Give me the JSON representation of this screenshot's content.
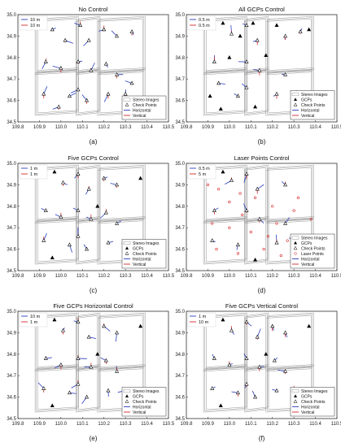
{
  "figure": {
    "x_ticks": [
      "109.8",
      "109.9",
      "110.0",
      "110.1",
      "110.2",
      "110.3",
      "110.4",
      "110.5"
    ],
    "y_ticks": [
      "34.5",
      "34.6",
      "34.7",
      "34.8",
      "34.9",
      "35.0"
    ],
    "legend_labels": {
      "stereo": "Stereo Images",
      "gcp": "GCPs",
      "check": "Check Points",
      "laser": "Laser Points",
      "horizontal": "Horizontal",
      "vertical": "Vertical"
    },
    "colors": {
      "horizontal": "#2b3dbd",
      "vertical": "#d62828",
      "frame": "#9a9a9a",
      "marker": "#000000"
    }
  },
  "chart_data": [
    {
      "type": "scatter",
      "title": "No Control",
      "caption": "(a)",
      "xlim": [
        109.8,
        110.5
      ],
      "ylim": [
        34.5,
        35.0
      ],
      "scale_legend": [
        "10 m",
        "10 m"
      ],
      "legend_items": [
        "stereo",
        "check",
        "horizontal",
        "vertical"
      ],
      "gcps": [],
      "laser_points": [],
      "check_points": [
        [
          109.96,
          34.93
        ],
        [
          110.02,
          34.88
        ],
        [
          110.09,
          34.95
        ],
        [
          110.13,
          34.88
        ],
        [
          110.2,
          34.93
        ],
        [
          110.26,
          34.9
        ],
        [
          110.33,
          34.92
        ],
        [
          109.93,
          34.78
        ],
        [
          110.0,
          34.75
        ],
        [
          110.08,
          34.78
        ],
        [
          110.14,
          34.74
        ],
        [
          110.21,
          34.77
        ],
        [
          110.26,
          34.72
        ],
        [
          109.92,
          34.63
        ],
        [
          109.99,
          34.57
        ],
        [
          110.04,
          34.62
        ],
        [
          110.08,
          34.65
        ],
        [
          110.12,
          34.6
        ],
        [
          110.22,
          34.63
        ],
        [
          110.3,
          34.63
        ],
        [
          110.33,
          34.68
        ]
      ]
    },
    {
      "type": "scatter",
      "title": "All GCPs Control",
      "caption": "(b)",
      "xlim": [
        109.8,
        110.5
      ],
      "ylim": [
        34.5,
        35.0
      ],
      "scale_legend": [
        "0.5 m",
        "0.5 m"
      ],
      "legend_items": [
        "stereo",
        "gcp",
        "check",
        "horizontal",
        "vertical"
      ],
      "gcps": [
        [
          109.97,
          34.96
        ],
        [
          110.05,
          34.9
        ],
        [
          110.11,
          34.96
        ],
        [
          110.22,
          34.95
        ],
        [
          110.37,
          34.93
        ],
        [
          110.0,
          34.8
        ],
        [
          110.17,
          34.81
        ],
        [
          109.91,
          34.62
        ],
        [
          109.96,
          34.56
        ],
        [
          110.12,
          34.57
        ],
        [
          110.33,
          34.56
        ]
      ],
      "laser_points": [],
      "check_points": [
        [
          110.01,
          34.91
        ],
        [
          110.08,
          34.95
        ],
        [
          110.13,
          34.88
        ],
        [
          110.26,
          34.9
        ],
        [
          110.33,
          34.92
        ],
        [
          109.93,
          34.78
        ],
        [
          110.08,
          34.78
        ],
        [
          110.14,
          34.74
        ],
        [
          110.26,
          34.72
        ],
        [
          109.95,
          34.68
        ],
        [
          110.04,
          34.62
        ],
        [
          110.08,
          34.66
        ],
        [
          110.22,
          34.63
        ],
        [
          110.3,
          34.63
        ]
      ]
    },
    {
      "type": "scatter",
      "title": "Five GCPs Control",
      "caption": "(c)",
      "xlim": [
        109.8,
        110.5
      ],
      "ylim": [
        34.5,
        35.0
      ],
      "scale_legend": [
        "1 m",
        "1 m"
      ],
      "legend_items": [
        "stereo",
        "gcp",
        "check",
        "horizontal",
        "vertical"
      ],
      "gcps": [
        [
          109.97,
          34.96
        ],
        [
          110.37,
          34.93
        ],
        [
          110.17,
          34.8
        ],
        [
          109.96,
          34.56
        ],
        [
          110.33,
          34.56
        ]
      ],
      "laser_points": [],
      "check_points": [
        [
          110.01,
          34.91
        ],
        [
          110.08,
          34.95
        ],
        [
          110.13,
          34.88
        ],
        [
          110.2,
          34.93
        ],
        [
          110.26,
          34.9
        ],
        [
          109.93,
          34.78
        ],
        [
          110.0,
          34.75
        ],
        [
          110.08,
          34.78
        ],
        [
          110.14,
          34.74
        ],
        [
          110.21,
          34.77
        ],
        [
          110.26,
          34.72
        ],
        [
          109.92,
          34.64
        ],
        [
          110.04,
          34.62
        ],
        [
          110.08,
          34.66
        ],
        [
          110.12,
          34.6
        ],
        [
          110.22,
          34.63
        ],
        [
          110.3,
          34.63
        ]
      ]
    },
    {
      "type": "scatter",
      "title": "Laser Points Control",
      "caption": "(d)",
      "xlim": [
        109.8,
        110.5
      ],
      "ylim": [
        34.5,
        35.0
      ],
      "scale_legend": [
        "0.5 m",
        "5 m"
      ],
      "legend_items": [
        "stereo",
        "gcp",
        "check",
        "laser",
        "horizontal",
        "vertical"
      ],
      "gcps": [
        [
          109.97,
          34.96
        ],
        [
          110.12,
          34.55
        ],
        [
          110.33,
          34.56
        ]
      ],
      "laser_points": [
        [
          109.9,
          34.9
        ],
        [
          109.95,
          34.88
        ],
        [
          110.05,
          34.86
        ],
        [
          110.12,
          34.84
        ],
        [
          110.2,
          34.8
        ],
        [
          110.3,
          34.78
        ],
        [
          110.38,
          34.74
        ],
        [
          109.92,
          34.72
        ],
        [
          110.0,
          34.7
        ],
        [
          110.1,
          34.68
        ],
        [
          110.18,
          34.66
        ],
        [
          110.27,
          34.64
        ],
        [
          110.36,
          34.62
        ],
        [
          109.94,
          34.6
        ],
        [
          110.04,
          34.58
        ],
        [
          110.16,
          34.6
        ],
        [
          110.24,
          34.57
        ],
        [
          110.38,
          34.58
        ],
        [
          110.06,
          34.76
        ],
        [
          110.22,
          34.72
        ],
        [
          110.32,
          34.84
        ],
        [
          110.0,
          34.82
        ]
      ],
      "check_points": [
        [
          110.01,
          34.92
        ],
        [
          110.08,
          34.95
        ],
        [
          110.13,
          34.88
        ],
        [
          110.26,
          34.9
        ],
        [
          109.93,
          34.78
        ],
        [
          110.08,
          34.78
        ],
        [
          110.14,
          34.74
        ],
        [
          110.26,
          34.72
        ],
        [
          109.92,
          34.64
        ],
        [
          110.04,
          34.62
        ],
        [
          110.22,
          34.63
        ],
        [
          110.3,
          34.63
        ]
      ]
    },
    {
      "type": "scatter",
      "title": "Five GCPs Horizontal Control",
      "caption": "(e)",
      "xlim": [
        109.8,
        110.5
      ],
      "ylim": [
        34.5,
        35.0
      ],
      "scale_legend": [
        "10 m",
        "1 m"
      ],
      "legend_items": [
        "stereo",
        "gcp",
        "check",
        "horizontal",
        "vertical"
      ],
      "gcps": [
        [
          109.97,
          34.96
        ],
        [
          110.37,
          34.93
        ],
        [
          110.17,
          34.8
        ],
        [
          109.96,
          34.56
        ],
        [
          110.33,
          34.56
        ]
      ],
      "laser_points": [],
      "check_points": [
        [
          110.01,
          34.91
        ],
        [
          110.08,
          34.95
        ],
        [
          110.13,
          34.88
        ],
        [
          110.2,
          34.93
        ],
        [
          110.26,
          34.9
        ],
        [
          109.93,
          34.78
        ],
        [
          110.0,
          34.75
        ],
        [
          110.08,
          34.78
        ],
        [
          110.14,
          34.74
        ],
        [
          110.21,
          34.77
        ],
        [
          110.26,
          34.72
        ],
        [
          109.92,
          34.64
        ],
        [
          110.04,
          34.62
        ],
        [
          110.08,
          34.66
        ],
        [
          110.12,
          34.6
        ],
        [
          110.22,
          34.63
        ],
        [
          110.3,
          34.63
        ]
      ]
    },
    {
      "type": "scatter",
      "title": "Five GCPs Vertical Control",
      "caption": "(f)",
      "xlim": [
        109.8,
        110.5
      ],
      "ylim": [
        34.5,
        35.0
      ],
      "scale_legend": [
        "1 m",
        "10 m"
      ],
      "legend_items": [
        "stereo",
        "gcp",
        "check",
        "horizontal",
        "vertical"
      ],
      "gcps": [
        [
          109.97,
          34.96
        ],
        [
          110.37,
          34.93
        ],
        [
          110.17,
          34.8
        ],
        [
          109.96,
          34.56
        ],
        [
          110.33,
          34.56
        ]
      ],
      "laser_points": [],
      "check_points": [
        [
          110.01,
          34.91
        ],
        [
          110.08,
          34.95
        ],
        [
          110.13,
          34.88
        ],
        [
          110.2,
          34.93
        ],
        [
          110.26,
          34.9
        ],
        [
          109.93,
          34.78
        ],
        [
          110.0,
          34.75
        ],
        [
          110.08,
          34.78
        ],
        [
          110.14,
          34.74
        ],
        [
          110.21,
          34.77
        ],
        [
          110.26,
          34.72
        ],
        [
          109.92,
          34.64
        ],
        [
          110.04,
          34.62
        ],
        [
          110.08,
          34.66
        ],
        [
          110.12,
          34.6
        ],
        [
          110.22,
          34.63
        ],
        [
          110.3,
          34.63
        ]
      ]
    }
  ]
}
